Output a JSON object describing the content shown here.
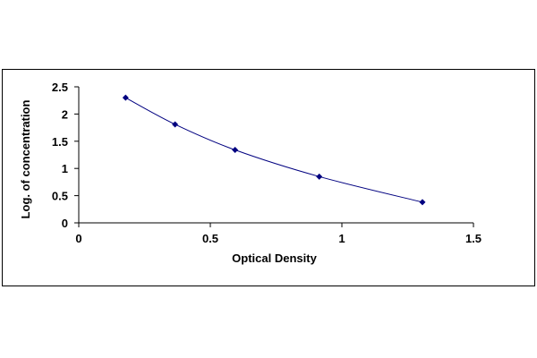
{
  "chart_data": {
    "type": "scatter",
    "title": "",
    "xlabel": "Optical Density",
    "ylabel": "Log. of concentration",
    "xlim": [
      0,
      1.5
    ],
    "ylim": [
      0,
      2.5
    ],
    "x_ticks": [
      0,
      0.5,
      1,
      1.5
    ],
    "x_tick_labels": [
      "0",
      "0.5",
      "1",
      "1.5"
    ],
    "y_ticks": [
      0,
      0.5,
      1,
      1.5,
      2,
      2.5
    ],
    "y_tick_labels": [
      "0",
      "0.5",
      "1",
      "1.5",
      "2",
      "2.5"
    ],
    "grid": false,
    "legend": "none",
    "trendline": "smooth curve through points",
    "series": [
      {
        "x": [
          0.178,
          0.366,
          0.594,
          0.914,
          1.306
        ],
        "y": [
          2.3,
          1.81,
          1.34,
          0.85,
          0.38
        ]
      }
    ],
    "colors": {
      "marker": "#000080",
      "line": "#000080",
      "axis": "#000000"
    }
  }
}
